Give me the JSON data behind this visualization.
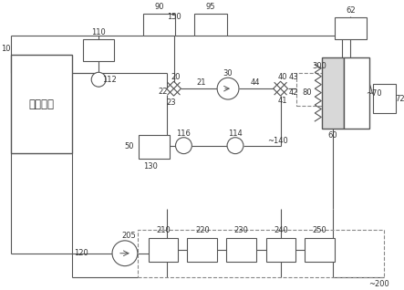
{
  "lc": "#555555",
  "lc2": "#888888",
  "figsize": [
    4.43,
    3.18
  ],
  "dpi": 100,
  "xlim": [
    0,
    443
  ],
  "ylim": [
    0,
    318
  ]
}
